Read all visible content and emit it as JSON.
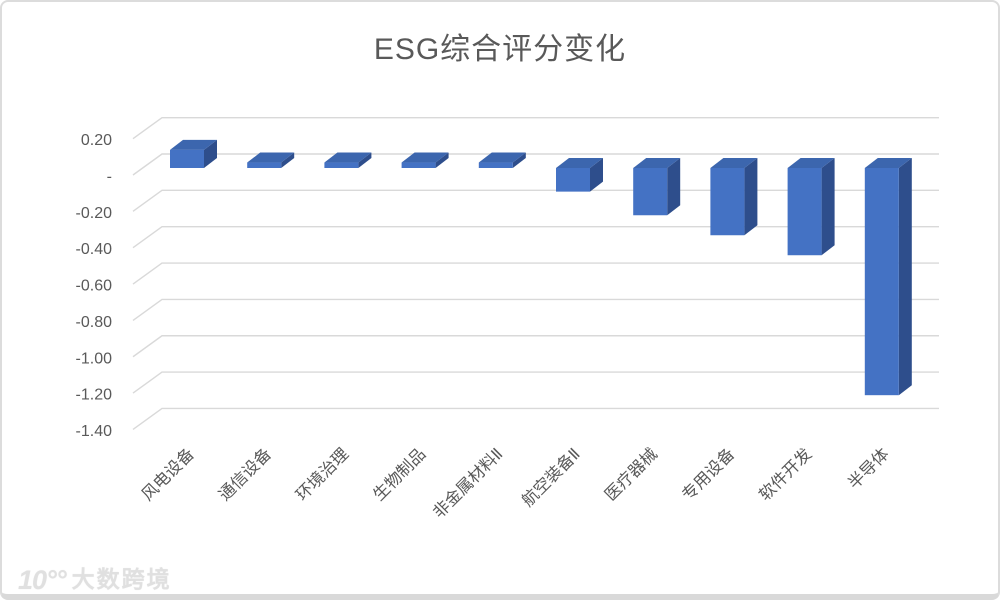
{
  "page": {
    "background_color": "#ffffff",
    "border_color": "#d9d9d9"
  },
  "chart_data": {
    "type": "bar",
    "variant": "3d-column",
    "title": "ESG综合评分变化",
    "xlabel": "",
    "ylabel": "",
    "categories": [
      "风电设备",
      "通信设备",
      "环境治理",
      "生物制品",
      "非金属材料Ⅱ",
      "航空装备Ⅱ",
      "医疗器械",
      "专用设备",
      "软件开发",
      "半导体"
    ],
    "values": [
      0.1,
      0.03,
      0.03,
      0.03,
      0.03,
      -0.13,
      -0.26,
      -0.37,
      -0.48,
      -1.25
    ],
    "series_name": "ESG综合评分变化",
    "ylim": [
      -1.4,
      0.2
    ],
    "y_axis_ticks": [
      {
        "label": "0.20",
        "value": 0.2
      },
      {
        "label": "-",
        "value": 0.0
      },
      {
        "label": "-0.20",
        "value": -0.2
      },
      {
        "label": "-0.40",
        "value": -0.4
      },
      {
        "label": "-0.60",
        "value": -0.6
      },
      {
        "label": "-0.80",
        "value": -0.8
      },
      {
        "label": "-1.00",
        "value": -1.0
      },
      {
        "label": "-1.20",
        "value": -1.2
      },
      {
        "label": "-1.40",
        "value": -1.4
      }
    ],
    "grid": true,
    "legend": false,
    "colors": {
      "bar_front": "#4472C4",
      "bar_top": "#3C66AE",
      "bar_side": "#2E4E8C",
      "gridline": "#D9D9D9",
      "axis_text": "#595959",
      "title_text": "#595959"
    }
  },
  "watermark": {
    "logo": "10°°",
    "text": "大数跨境"
  }
}
